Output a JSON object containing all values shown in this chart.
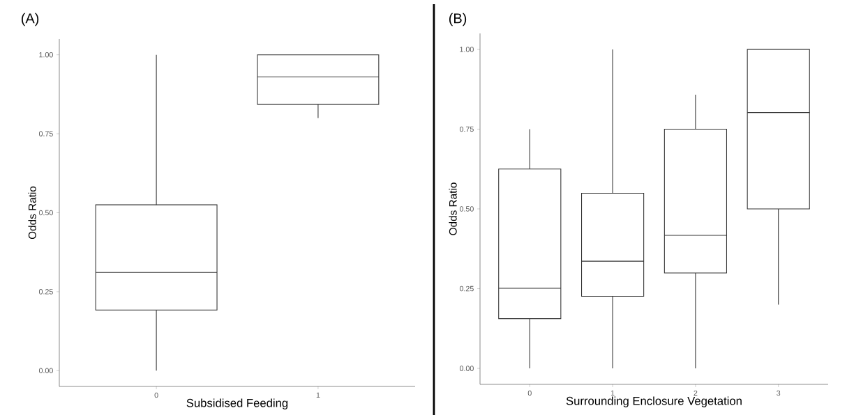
{
  "chart_data": [
    {
      "type": "box",
      "annotations": [
        "(A)"
      ],
      "xlabel": "Subsidised Feeding",
      "ylabel": "Odds Ratio",
      "categories": [
        "0",
        "1"
      ],
      "boxes": [
        {
          "low": 0.0,
          "q1": 0.192,
          "median": 0.311,
          "q3": 0.525,
          "high": 1.0
        },
        {
          "low": 0.8,
          "q1": 0.843,
          "median": 0.93,
          "q3": 1.0,
          "high": 1.0
        }
      ],
      "ylim": [
        -0.05,
        1.05
      ],
      "yticks": [
        {
          "value": 0,
          "label": "0.00"
        },
        {
          "value": 0.25,
          "label": "0.25"
        },
        {
          "value": 0.5,
          "label": "0.50"
        },
        {
          "value": 0.75,
          "label": "0.75"
        },
        {
          "value": 1,
          "label": "1.00"
        }
      ],
      "grid": false
    },
    {
      "type": "box",
      "annotations": [
        "(B)"
      ],
      "xlabel": "Surrounding Enclosure Vegetation",
      "ylabel": "Odds Ratio",
      "categories": [
        "0",
        "1",
        "2",
        "3"
      ],
      "boxes": [
        {
          "low": 0.0,
          "q1": 0.156,
          "median": 0.251,
          "q3": 0.625,
          "high": 0.75
        },
        {
          "low": 0.0,
          "q1": 0.226,
          "median": 0.336,
          "q3": 0.549,
          "high": 1.0
        },
        {
          "low": 0.0,
          "q1": 0.299,
          "median": 0.417,
          "q3": 0.75,
          "high": 0.858
        },
        {
          "low": 0.2,
          "q1": 0.5,
          "median": 0.802,
          "q3": 1.0,
          "high": 1.0
        }
      ],
      "ylim": [
        -0.05,
        1.05
      ],
      "yticks": [
        {
          "value": 0,
          "label": "0.00"
        },
        {
          "value": 0.25,
          "label": "0.25"
        },
        {
          "value": 0.5,
          "label": "0.50"
        },
        {
          "value": 0.75,
          "label": "0.75"
        },
        {
          "value": 1,
          "label": "1.00"
        }
      ],
      "grid": false
    }
  ]
}
